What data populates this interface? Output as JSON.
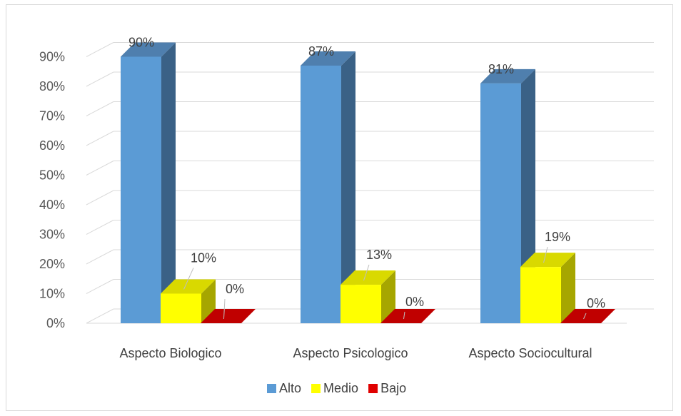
{
  "chart_data": {
    "type": "bar",
    "categories": [
      "Aspecto Biologico",
      "Aspecto Psicologico",
      "Aspecto Sociocultural"
    ],
    "series": [
      {
        "name": "Alto",
        "values": [
          90,
          87,
          81
        ],
        "labels": [
          "90%",
          "87%",
          "81%"
        ]
      },
      {
        "name": "Medio",
        "values": [
          10,
          13,
          19
        ],
        "labels": [
          "10%",
          "13%",
          "19%"
        ]
      },
      {
        "name": "Bajo",
        "values": [
          0,
          0,
          0
        ],
        "labels": [
          "0%",
          "0%",
          "0%"
        ]
      }
    ],
    "y_ticks": [
      "0%",
      "10%",
      "20%",
      "30%",
      "40%",
      "50%",
      "60%",
      "70%",
      "80%",
      "90%"
    ],
    "ylim": [
      0,
      90
    ],
    "grid": true,
    "three_d": true,
    "legend_position": "bottom",
    "colors": {
      "Alto": {
        "front": "#5b9bd5",
        "side": "#3a6186",
        "top": "#4f7fae"
      },
      "Medio": {
        "front": "#ffff00",
        "side": "#a6a600",
        "top": "#d9d900"
      },
      "Bajo": {
        "front": "#e00000",
        "side": "#a00000",
        "top": "#c00000"
      }
    }
  }
}
